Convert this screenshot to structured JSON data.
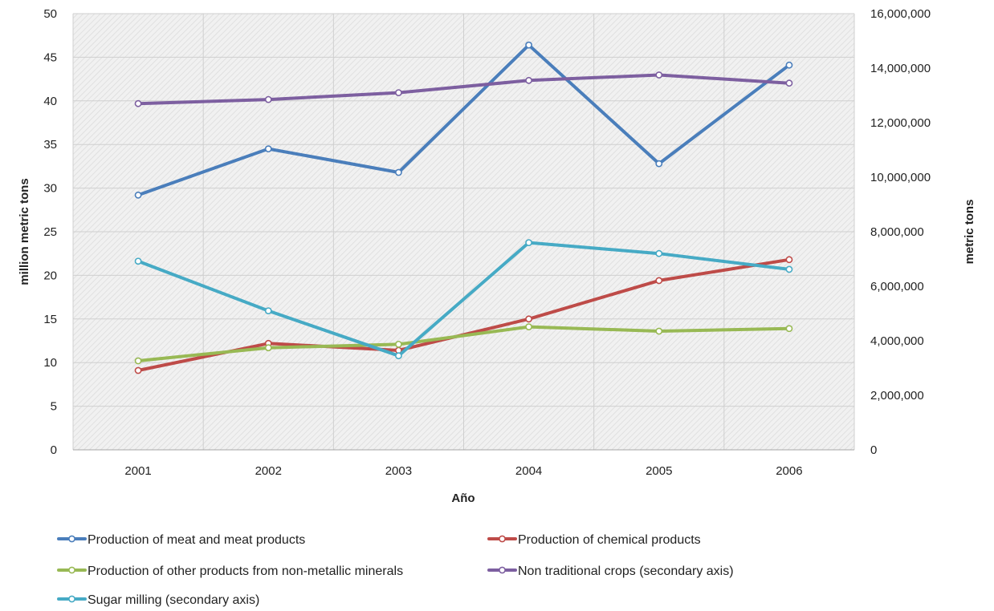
{
  "chart_data": {
    "type": "line",
    "title": "",
    "xlabel": "Año",
    "ylabel": "million metric tons",
    "y2label": "metric tons",
    "categories": [
      "2001",
      "2002",
      "2003",
      "2004",
      "2005",
      "2006"
    ],
    "ylim": [
      0,
      50
    ],
    "y2lim": [
      0,
      16000000
    ],
    "yticks": [
      "0",
      "5",
      "10",
      "15",
      "20",
      "25",
      "30",
      "35",
      "40",
      "45",
      "50"
    ],
    "y2ticks": [
      "0",
      "2,000,000",
      "4,000,000",
      "6,000,000",
      "8,000,000",
      "10,000,000",
      "12,000,000",
      "14,000,000",
      "16,000,000"
    ],
    "grid": true,
    "legend_position": "bottom",
    "series": [
      {
        "name": "Production  of meat and meat products",
        "axis": "primary",
        "color": "#4a7ebb",
        "values": [
          29.2,
          34.5,
          31.8,
          46.4,
          32.8,
          44.1
        ]
      },
      {
        "name": "Production  of chemical products",
        "axis": "primary",
        "color": "#be4b48",
        "values": [
          9.1,
          12.2,
          11.4,
          15.0,
          19.4,
          21.8
        ]
      },
      {
        "name": "Production  of other products from non-metallic minerals",
        "axis": "primary",
        "color": "#98b954",
        "values": [
          10.2,
          11.7,
          12.1,
          14.1,
          13.6,
          13.9
        ]
      },
      {
        "name": "Non traditional crops (secondary axis)",
        "axis": "secondary",
        "color": "#7d5fa0",
        "values": [
          12700000,
          12850000,
          13100000,
          13550000,
          13750000,
          13450000
        ]
      },
      {
        "name": "Sugar milling (secondary axis)",
        "axis": "secondary",
        "color": "#46aac5",
        "values": [
          6920000,
          5100000,
          3450000,
          7600000,
          7200000,
          6620000
        ]
      }
    ]
  }
}
